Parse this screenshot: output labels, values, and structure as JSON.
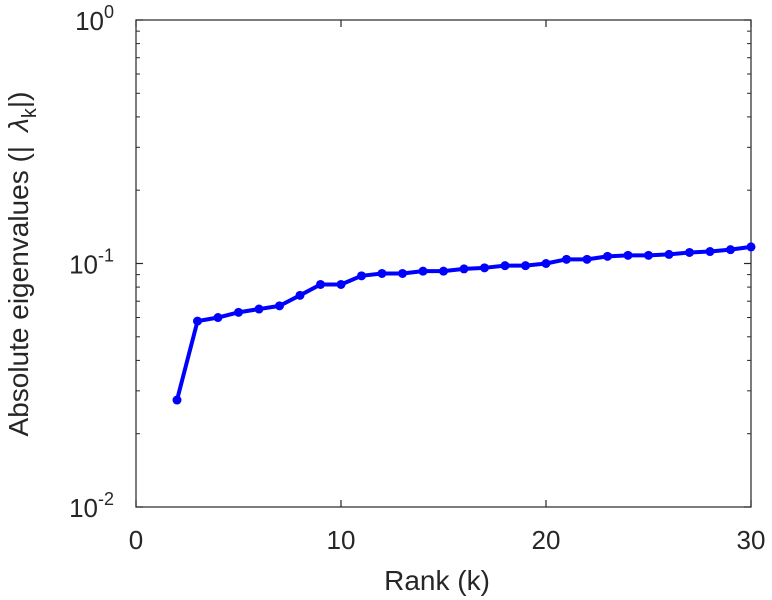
{
  "chart_data": {
    "type": "line",
    "title": "",
    "xlabel": "Rank (k)",
    "ylabel": "Absolute eigenvalues (|",
    "ylabel_symbol": "λ",
    "ylabel_subscript": "k",
    "ylabel_suffix": "|)",
    "yscale": "log",
    "xlim": [
      0,
      30
    ],
    "ylim": [
      0.01,
      1
    ],
    "xticks": [
      "0",
      "10",
      "20",
      "30"
    ],
    "yticks": [
      {
        "base": "10",
        "exp": "-2"
      },
      {
        "base": "10",
        "exp": "-1"
      },
      {
        "base": "10",
        "exp": "0"
      }
    ],
    "grid": false,
    "series": [
      {
        "color": "#0000ff",
        "x": [
          2,
          3,
          4,
          5,
          6,
          7,
          8,
          9,
          10,
          11,
          12,
          13,
          14,
          15,
          16,
          17,
          18,
          19,
          20,
          21,
          22,
          23,
          24,
          25,
          26,
          27,
          28,
          29,
          30
        ],
        "y": [
          0.0275,
          0.058,
          0.06,
          0.063,
          0.065,
          0.067,
          0.074,
          0.082,
          0.082,
          0.089,
          0.091,
          0.091,
          0.093,
          0.093,
          0.095,
          0.096,
          0.098,
          0.098,
          0.1,
          0.104,
          0.104,
          0.107,
          0.108,
          0.108,
          0.109,
          0.111,
          0.112,
          0.114,
          0.117
        ]
      }
    ]
  }
}
